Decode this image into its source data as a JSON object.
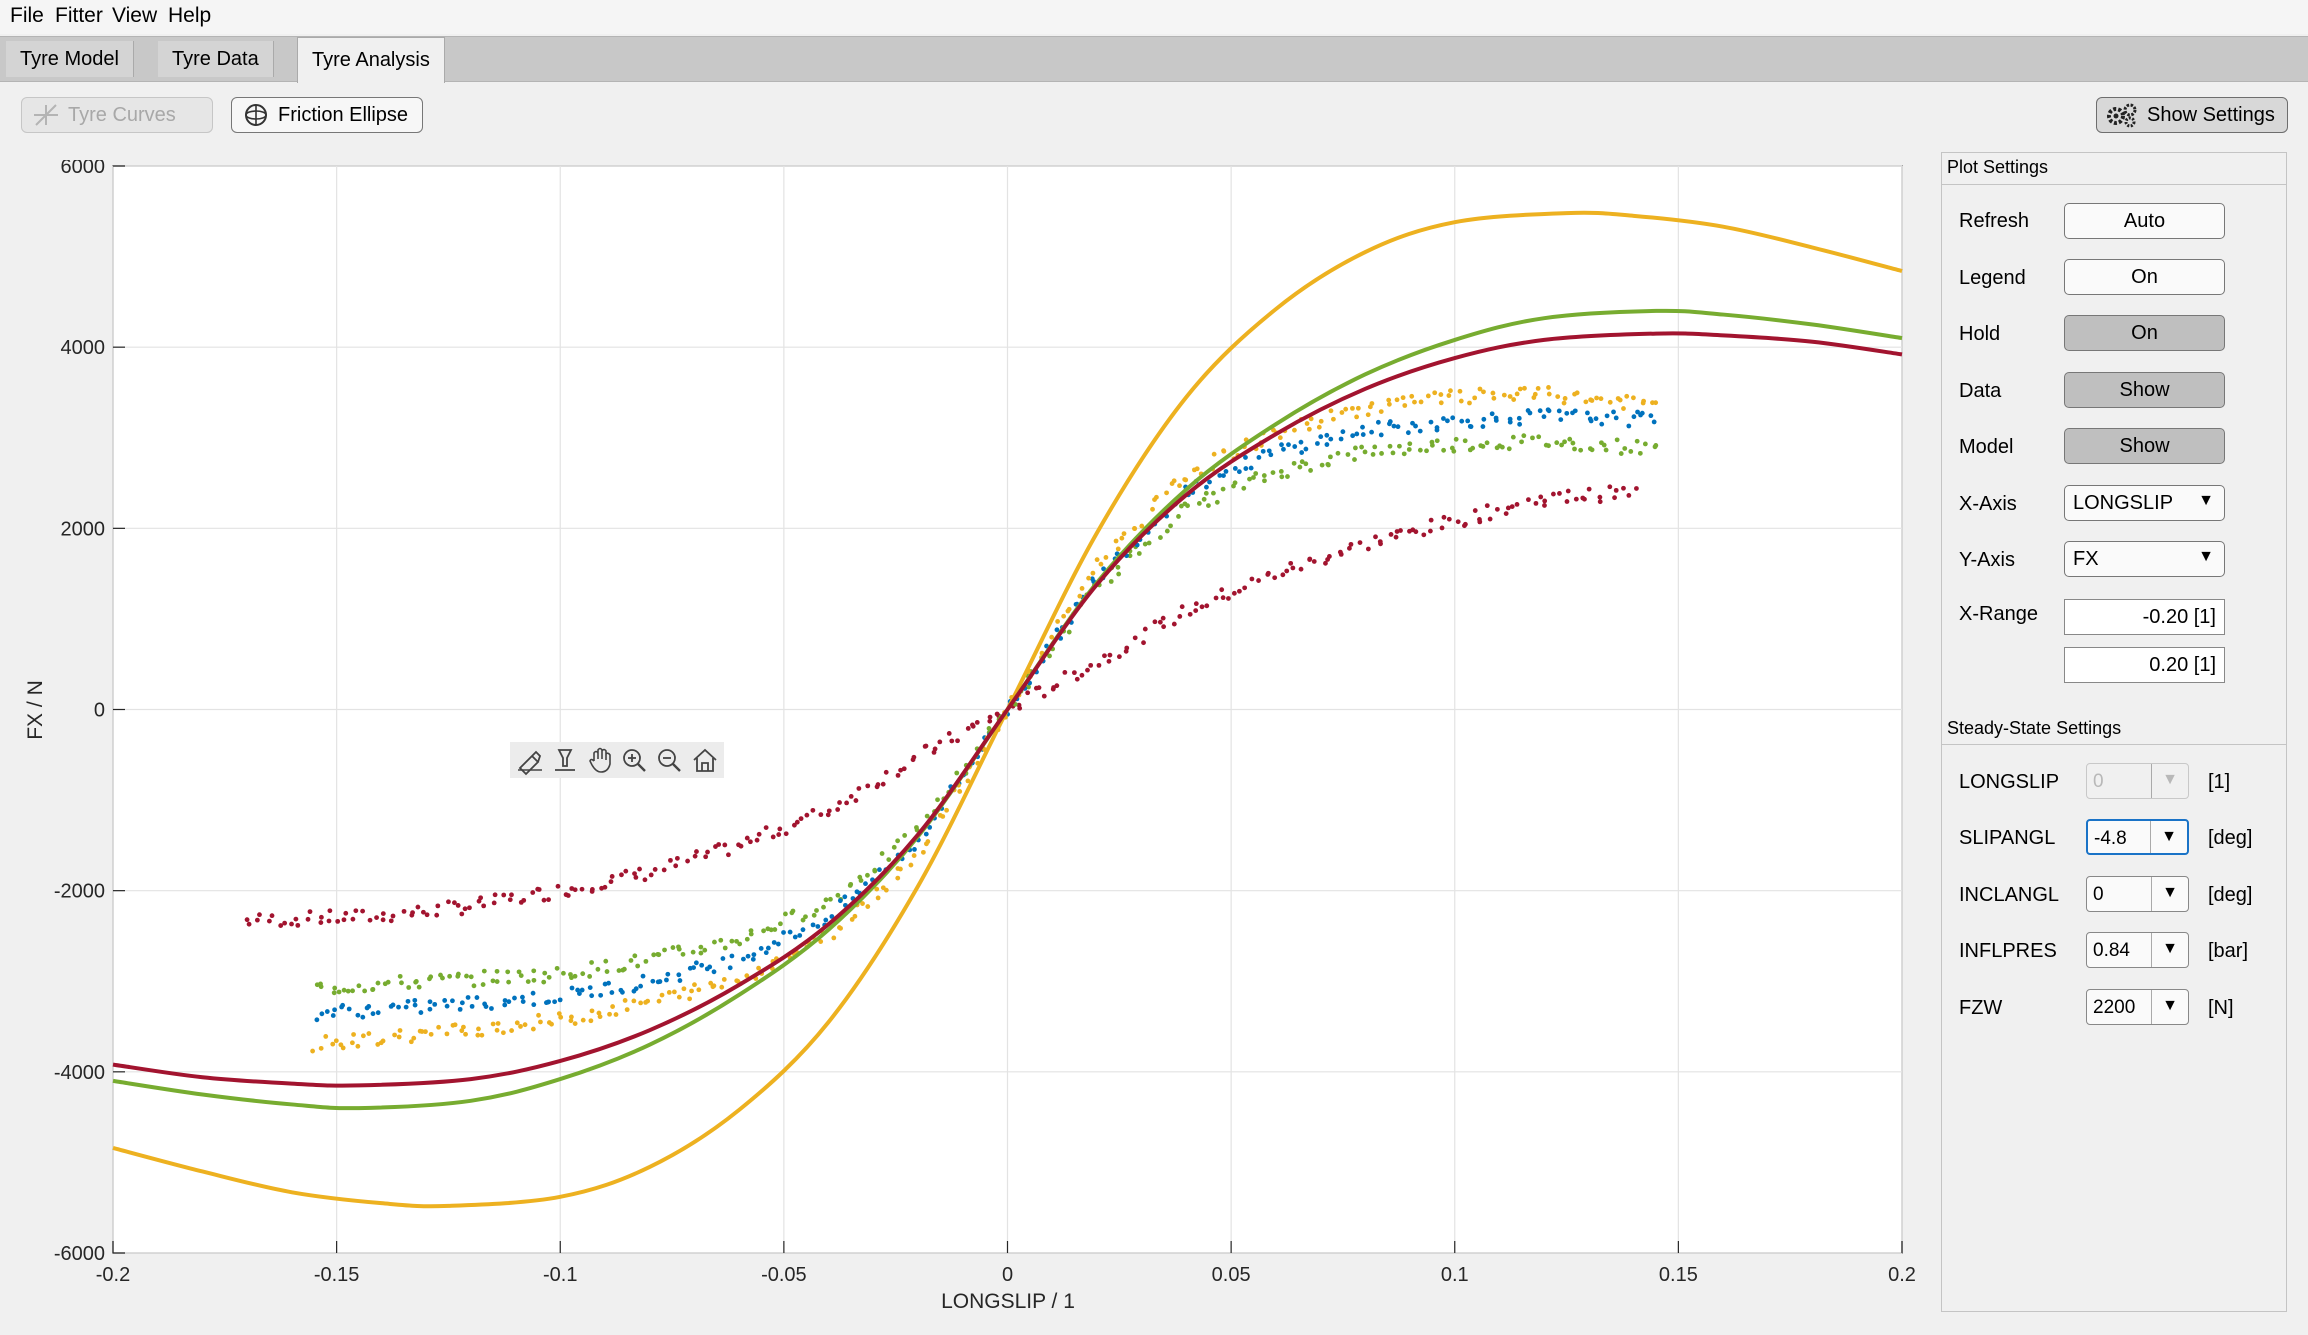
{
  "menu": [
    "File",
    "Fitter",
    "View",
    "Help"
  ],
  "tabs": [
    "Tyre Model",
    "Tyre Data",
    "Tyre Analysis"
  ],
  "active_tab": "Tyre Analysis",
  "toolbar": {
    "tyre_curves_label": "Tyre Curves",
    "friction_ellipse_label": "Friction Ellipse",
    "show_settings_label": "Show Settings"
  },
  "plot_settings": {
    "title": "Plot Settings",
    "refresh_label": "Refresh",
    "refresh_value": "Auto",
    "legend_label": "Legend",
    "legend_value": "On",
    "hold_label": "Hold",
    "hold_value": "On",
    "data_label": "Data",
    "data_value": "Show",
    "model_label": "Model",
    "model_value": "Show",
    "xaxis_label": "X-Axis",
    "xaxis_value": "LONGSLIP",
    "yaxis_label": "Y-Axis",
    "yaxis_value": "FX",
    "xrange_label": "X-Range",
    "xrange_min": "-0.20 [1]",
    "xrange_max": "0.20 [1]"
  },
  "steady_state": {
    "title": "Steady-State Settings",
    "rows": [
      {
        "label": "LONGSLIP",
        "value": "0",
        "unit": "[1]"
      },
      {
        "label": "SLIPANGL",
        "value": "-4.8",
        "unit": "[deg]"
      },
      {
        "label": "INCLANGL",
        "value": "0",
        "unit": "[deg]"
      },
      {
        "label": "INFLPRES",
        "value": "0.84",
        "unit": "[bar]"
      },
      {
        "label": "FZW",
        "value": "2200",
        "unit": "[N]"
      }
    ]
  },
  "colors": {
    "yellow": "#EDB120",
    "green": "#77AC30",
    "red": "#A2142F",
    "blue": "#0072BD"
  },
  "chart_data": {
    "type": "scatter",
    "xlabel": "LONGSLIP / 1",
    "ylabel": "FX / N",
    "xlim": [
      -0.2,
      0.2
    ],
    "ylim": [
      -6000,
      6000
    ],
    "xticks": [
      "-0.2",
      "-0.15",
      "-0.1",
      "-0.05",
      "0",
      "0.05",
      "0.1",
      "0.15",
      "0.2"
    ],
    "yticks": [
      "6000",
      "4000",
      "2000",
      "0",
      "-2000",
      "-4000",
      "-6000"
    ],
    "grid": true,
    "model_curves": [
      {
        "color": "#EDB120",
        "x": [
          -0.2,
          -0.18,
          -0.16,
          -0.14,
          -0.125,
          -0.1,
          -0.08,
          -0.06,
          -0.04,
          -0.02,
          0,
          0.02,
          0.04,
          0.06,
          0.08,
          0.1,
          0.125,
          0.14,
          0.16,
          0.18,
          0.2
        ],
        "y": [
          -4840,
          -5100,
          -5330,
          -5450,
          -5480,
          -5380,
          -5050,
          -4420,
          -3450,
          -1950,
          0,
          1950,
          3450,
          4420,
          5050,
          5380,
          5480,
          5450,
          5330,
          5100,
          4840
        ]
      },
      {
        "color": "#77AC30",
        "x": [
          -0.2,
          -0.18,
          -0.16,
          -0.145,
          -0.12,
          -0.1,
          -0.08,
          -0.06,
          -0.04,
          -0.02,
          0,
          0.02,
          0.04,
          0.06,
          0.08,
          0.1,
          0.12,
          0.145,
          0.16,
          0.18,
          0.2
        ],
        "y": [
          -4100,
          -4250,
          -4360,
          -4400,
          -4320,
          -4080,
          -3700,
          -3150,
          -2430,
          -1400,
          0,
          1400,
          2430,
          3150,
          3700,
          4080,
          4320,
          4400,
          4360,
          4250,
          4100
        ]
      },
      {
        "color": "#A2142F",
        "x": [
          -0.2,
          -0.18,
          -0.16,
          -0.145,
          -0.12,
          -0.1,
          -0.08,
          -0.06,
          -0.04,
          -0.02,
          0,
          0.02,
          0.04,
          0.06,
          0.08,
          0.1,
          0.12,
          0.145,
          0.16,
          0.18,
          0.2
        ],
        "y": [
          -3920,
          -4060,
          -4130,
          -4150,
          -4080,
          -3880,
          -3540,
          -3040,
          -2370,
          -1380,
          0,
          1380,
          2370,
          3040,
          3540,
          3880,
          4080,
          4150,
          4130,
          4060,
          3920
        ]
      }
    ],
    "data_series": [
      {
        "color": "#A2142F",
        "x": [
          -0.17,
          -0.14,
          -0.12,
          -0.1,
          -0.08,
          -0.06,
          -0.04,
          -0.02,
          0,
          0.02,
          0.04,
          0.06,
          0.08,
          0.1,
          0.12,
          0.14
        ],
        "y": [
          -2330,
          -2280,
          -2170,
          -2000,
          -1800,
          -1500,
          -1110,
          -520,
          0,
          520,
          1090,
          1500,
          1830,
          2080,
          2330,
          2400
        ]
      },
      {
        "color": "#77AC30",
        "x": [
          -0.155,
          -0.13,
          -0.1,
          -0.08,
          -0.06,
          -0.04,
          -0.02,
          0,
          0.02,
          0.04,
          0.06,
          0.08,
          0.1,
          0.12,
          0.145
        ],
        "y": [
          -3080,
          -3000,
          -2920,
          -2760,
          -2540,
          -2130,
          -1350,
          0,
          1350,
          2230,
          2620,
          2850,
          2930,
          2960,
          2880
        ]
      },
      {
        "color": "#0072BD",
        "x": [
          -0.155,
          -0.13,
          -0.1,
          -0.08,
          -0.06,
          -0.04,
          -0.02,
          0,
          0.02,
          0.04,
          0.06,
          0.08,
          0.1,
          0.12,
          0.145
        ],
        "y": [
          -3350,
          -3280,
          -3170,
          -3000,
          -2750,
          -2300,
          -1450,
          0,
          1450,
          2430,
          2850,
          3080,
          3180,
          3240,
          3200
        ]
      },
      {
        "color": "#EDB120",
        "x": [
          -0.155,
          -0.13,
          -0.1,
          -0.08,
          -0.06,
          -0.04,
          -0.02,
          0,
          0.02,
          0.04,
          0.06,
          0.08,
          0.1,
          0.12,
          0.145
        ],
        "y": [
          -3700,
          -3580,
          -3430,
          -3230,
          -2980,
          -2500,
          -1600,
          0,
          1600,
          2600,
          3050,
          3330,
          3450,
          3480,
          3360
        ]
      }
    ]
  }
}
